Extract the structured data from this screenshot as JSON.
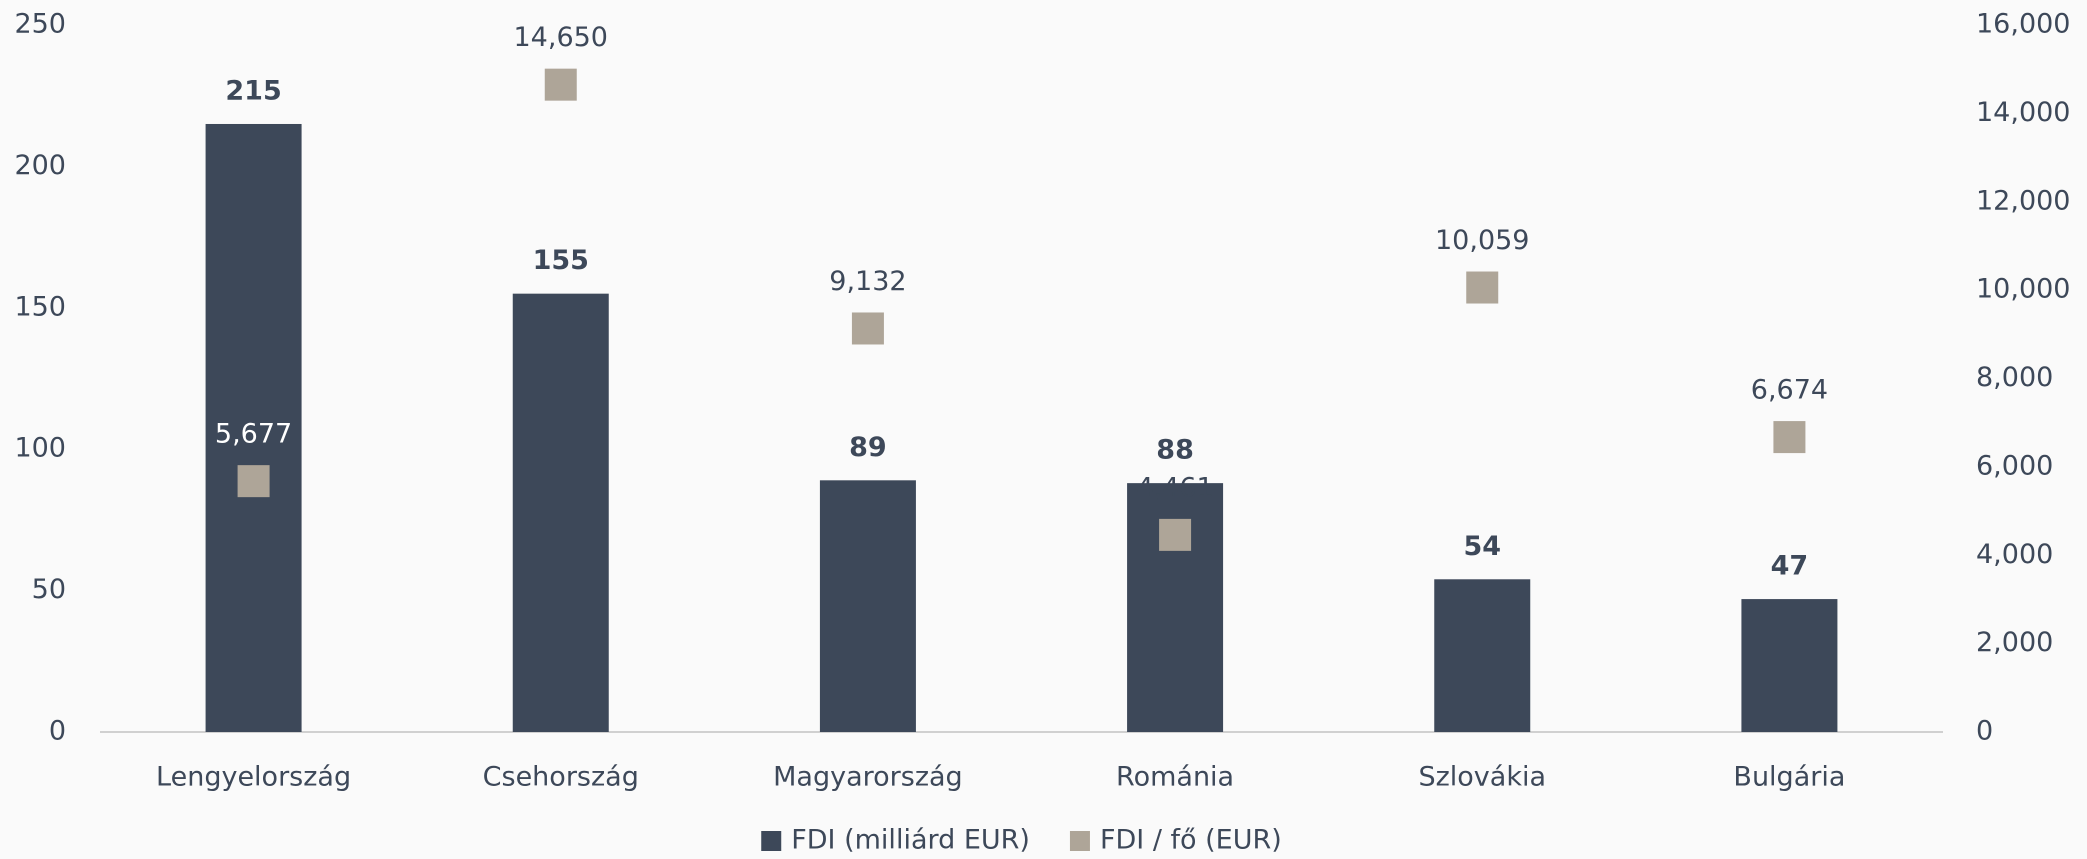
{
  "chart_data": {
    "type": "bar",
    "categories": [
      "Lengyelország",
      "Csehország",
      "Magyarország",
      "Románia",
      "Szlovákia",
      "Bulgária"
    ],
    "series": [
      {
        "name": "FDI (milliárd EUR)",
        "type": "bar",
        "color": "#3d4859",
        "values": [
          215,
          155,
          89,
          88,
          54,
          47
        ]
      },
      {
        "name": "FDI / fő (EUR)",
        "type": "scatter",
        "marker": "square",
        "axis": "y2",
        "color": "#aea598",
        "values": [
          5677,
          14650,
          9132,
          4461,
          10059,
          6674
        ],
        "value_labels": [
          "5,677",
          "14,650",
          "9,132",
          "4,461",
          "10,059",
          "6,674"
        ]
      }
    ],
    "ylim": [
      0,
      250
    ],
    "yticks": [
      0,
      50,
      100,
      150,
      200,
      250
    ],
    "y2lim": [
      0,
      16000
    ],
    "y2ticks": [
      0,
      {
        "value": 2000,
        "label": "2,000"
      },
      {
        "value": 4000,
        "label": "4,000"
      },
      {
        "value": 6000,
        "label": "6,000"
      },
      {
        "value": 8000,
        "label": "8,000"
      },
      {
        "value": 10000,
        "label": "10,000"
      },
      {
        "value": 12000,
        "label": "12,000"
      },
      {
        "value": 14000,
        "label": "14,000"
      },
      {
        "value": 16000,
        "label": "16,000"
      }
    ],
    "legend": "bottom"
  }
}
